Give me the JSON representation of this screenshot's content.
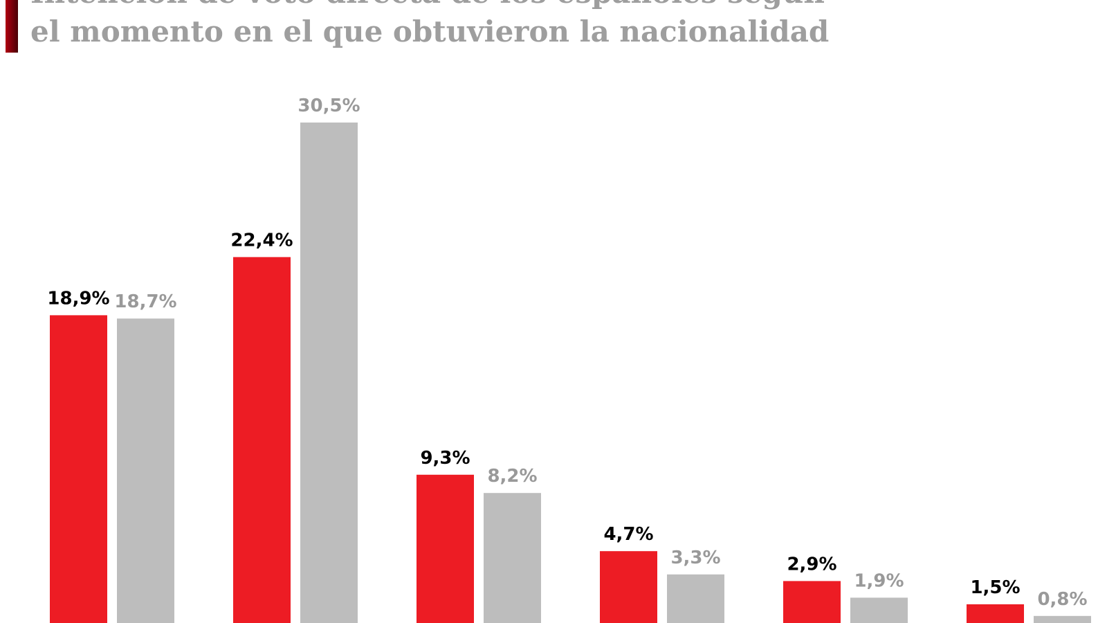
{
  "chart_data": {
    "type": "bar",
    "title": [
      "Intención de voto directa de los españoles según",
      "el momento en el que obtuvieron la nacionalidad"
    ],
    "categories": [
      null,
      null,
      null,
      null,
      null,
      null
    ],
    "series": [
      {
        "color": "#ed1c24",
        "label_color": "#000000",
        "values": [
          18.9,
          22.4,
          9.3,
          4.7,
          2.9,
          1.5
        ],
        "value_labels": [
          "18,9%",
          "22,4%",
          "9,3%",
          "4,7%",
          "2,9%",
          "1,5%"
        ]
      },
      {
        "color": "#bdbdbd",
        "label_color": "#999999",
        "values": [
          18.7,
          30.5,
          8.2,
          3.3,
          1.9,
          0.8
        ],
        "value_labels": [
          "18,7%",
          "30,5%",
          "8,2%",
          "3,3%",
          "1,9%",
          "0,8%"
        ]
      }
    ]
  }
}
